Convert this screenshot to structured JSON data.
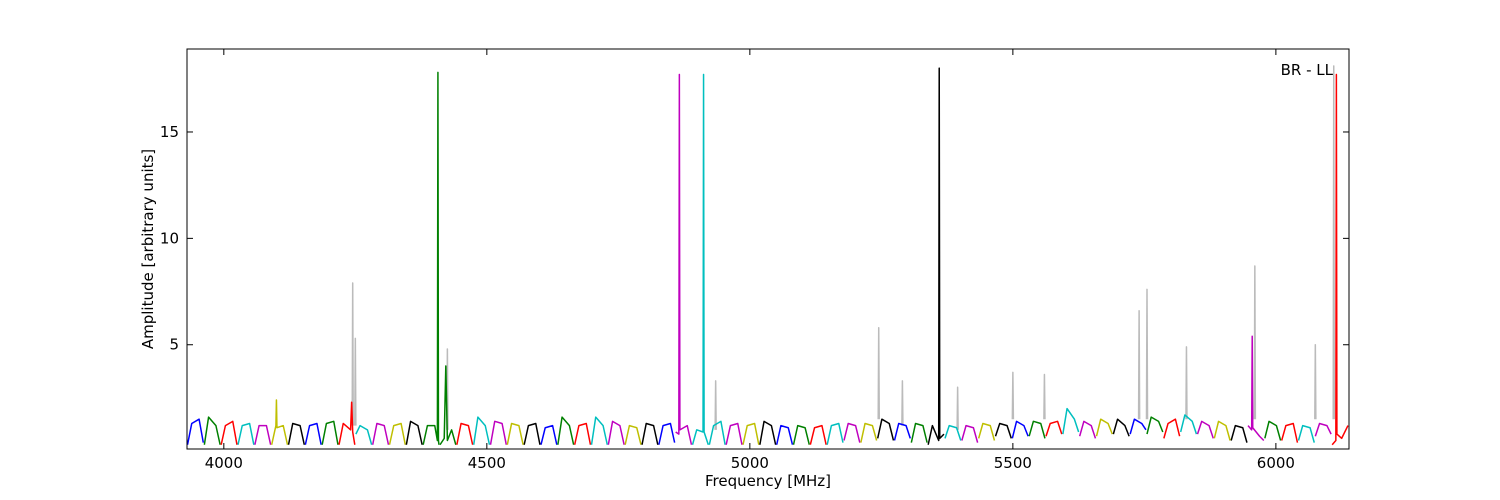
{
  "chart_data": {
    "type": "line",
    "annotation": "BR - LL",
    "x_label": "Frequency [MHz]",
    "y_label": "Amplitude [arbitrary units]",
    "xlim": [
      3930,
      6139
    ],
    "ylim": [
      0.1,
      18.9
    ],
    "xticks": [
      4000,
      4500,
      5000,
      5500,
      6000
    ],
    "yticks": [
      5,
      10,
      15
    ],
    "grid": false,
    "series": [
      {
        "color": "#bbbbbb",
        "x": [
          4244,
          4245,
          4246,
          null,
          4249,
          4250,
          4251,
          null,
          4424,
          4425,
          4426,
          null,
          4934,
          4935,
          4936,
          null,
          5244,
          5245,
          5246,
          null,
          5289,
          5290,
          5291,
          null,
          5394,
          5395,
          5396,
          null,
          5499,
          5500,
          5501,
          null,
          5559,
          5560,
          5561,
          null,
          5739,
          5740,
          5741,
          null,
          5754,
          5755,
          5756,
          null,
          5829,
          5830,
          5831,
          null,
          5959,
          5960,
          5961,
          null,
          6074,
          6075,
          6076,
          null,
          6109,
          6110,
          6111
        ],
        "values": [
          1.2,
          7.9,
          1.2,
          null,
          1.2,
          5.3,
          1.2,
          null,
          1.0,
          4.8,
          1.0,
          null,
          1.0,
          3.3,
          1.0,
          null,
          1.5,
          5.8,
          1.5,
          null,
          1.2,
          3.3,
          1.2,
          null,
          1.0,
          3.0,
          1.0,
          null,
          1.5,
          3.7,
          1.5,
          null,
          1.5,
          3.6,
          1.5,
          null,
          1.5,
          6.6,
          1.5,
          null,
          1.5,
          7.6,
          1.5,
          null,
          1.5,
          4.9,
          1.5,
          null,
          1.5,
          8.7,
          1.5,
          null,
          1.5,
          5.0,
          1.5,
          null,
          1.5,
          18.1,
          1.5
        ]
      },
      {
        "color": "#0000ff",
        "x": [
          3931,
          3939,
          3953,
          3961,
          null,
          4155,
          4163,
          4177,
          4185,
          null,
          4603,
          4611,
          4625,
          4633,
          null,
          4827,
          4835,
          4849,
          4857,
          null,
          5051,
          5059,
          5073,
          5081,
          null,
          5275,
          5283,
          5297,
          5305,
          null,
          5499,
          5507,
          5521,
          5529,
          null,
          5723,
          5731,
          5745,
          5753
        ],
        "values": [
          0.3,
          1.3,
          1.5,
          0.4,
          null,
          0.3,
          1.2,
          1.3,
          0.3,
          null,
          0.3,
          1.1,
          1.2,
          0.3,
          null,
          0.3,
          1.2,
          1.3,
          0.4,
          null,
          0.3,
          1.2,
          1.1,
          0.3,
          null,
          0.5,
          1.3,
          1.2,
          0.6,
          null,
          0.6,
          1.4,
          1.2,
          0.7,
          null,
          0.8,
          1.5,
          1.3,
          1.0
        ]
      },
      {
        "color": "#008000",
        "x": [
          3963,
          3971,
          3985,
          3993,
          null,
          4187,
          4195,
          4209,
          4217,
          null,
          4379,
          4387,
          4401,
          4406,
          4407,
          4408,
          4409,
          null,
          4411,
          4419,
          4422,
          4425,
          4433,
          4441,
          null,
          4635,
          4643,
          4657,
          4665,
          null,
          5083,
          5091,
          5105,
          5113,
          null,
          5307,
          5315,
          5329,
          5337,
          null,
          5531,
          5539,
          5553,
          5561,
          null,
          5755,
          5763,
          5777,
          5785,
          null,
          5979,
          5987,
          6001,
          6009
        ],
        "values": [
          0.3,
          1.6,
          1.2,
          0.3,
          null,
          0.3,
          1.3,
          1.4,
          0.3,
          null,
          0.3,
          1.2,
          1.2,
          0.5,
          17.8,
          0.5,
          0.3,
          null,
          0.3,
          0.6,
          4.0,
          0.5,
          1.0,
          0.3,
          null,
          0.3,
          1.6,
          1.2,
          0.3,
          null,
          0.3,
          1.2,
          1.1,
          0.3,
          null,
          0.4,
          1.3,
          1.2,
          0.4,
          null,
          0.7,
          1.4,
          1.3,
          0.6,
          null,
          0.8,
          1.6,
          1.4,
          0.9,
          null,
          0.6,
          1.4,
          1.2,
          0.5
        ]
      },
      {
        "color": "#ff0000",
        "x": [
          3995,
          4003,
          4017,
          4025,
          null,
          4219,
          4227,
          4241,
          4243,
          4245,
          4249,
          null,
          4443,
          4451,
          4465,
          4473,
          null,
          4667,
          4675,
          4689,
          4697,
          null,
          5115,
          5123,
          5137,
          5145,
          null,
          5563,
          5571,
          5585,
          5593,
          null,
          5787,
          5795,
          5809,
          5817,
          null,
          6011,
          6019,
          6033,
          6041,
          null,
          6107,
          6114,
          6115,
          6116,
          6125,
          6137
        ],
        "values": [
          0.3,
          1.2,
          1.4,
          0.3,
          null,
          0.3,
          1.3,
          1.0,
          2.3,
          0.9,
          0.3,
          null,
          0.3,
          1.3,
          1.2,
          0.3,
          null,
          0.3,
          1.2,
          1.3,
          0.3,
          null,
          0.3,
          1.1,
          1.2,
          0.3,
          null,
          0.7,
          1.3,
          1.4,
          0.8,
          null,
          0.6,
          1.3,
          1.5,
          0.7,
          null,
          0.5,
          1.2,
          1.3,
          0.4,
          null,
          0.3,
          0.5,
          17.7,
          0.8,
          0.6,
          1.2
        ]
      },
      {
        "color": "#00bfbf",
        "x": [
          4027,
          4035,
          4049,
          4057,
          null,
          4251,
          4259,
          4273,
          4281,
          null,
          4475,
          4483,
          4497,
          4505,
          null,
          4699,
          4707,
          4721,
          4729,
          null,
          4891,
          4899,
          4911,
          4912,
          4913,
          4921,
          null,
          4923,
          4931,
          4945,
          4953,
          null,
          5147,
          5155,
          5169,
          5177,
          null,
          5371,
          5379,
          5393,
          5401,
          null,
          5595,
          5603,
          5617,
          5625,
          null,
          5819,
          5827,
          5841,
          5849,
          null,
          6043,
          6051,
          6065,
          6073
        ],
        "values": [
          0.3,
          1.2,
          1.3,
          0.3,
          null,
          0.8,
          1.2,
          1.0,
          0.3,
          null,
          0.3,
          1.6,
          1.2,
          0.3,
          null,
          0.3,
          1.6,
          1.2,
          0.3,
          null,
          0.3,
          1.0,
          0.9,
          17.7,
          0.9,
          0.3,
          null,
          0.3,
          1.2,
          1.4,
          0.3,
          null,
          0.3,
          1.2,
          1.3,
          0.4,
          null,
          0.6,
          1.2,
          1.1,
          0.5,
          null,
          0.8,
          2.0,
          1.5,
          0.9,
          null,
          0.9,
          1.7,
          1.4,
          0.8,
          null,
          0.5,
          1.2,
          1.1,
          0.4
        ]
      },
      {
        "color": "#bf00bf",
        "x": [
          4059,
          4067,
          4081,
          4089,
          null,
          4283,
          4291,
          4305,
          4313,
          null,
          4507,
          4515,
          4529,
          4537,
          null,
          4731,
          4739,
          4753,
          4761,
          null,
          4859,
          4865,
          4866,
          4867,
          4881,
          4889,
          null,
          4955,
          4963,
          4977,
          4985,
          null,
          5179,
          5187,
          5201,
          5209,
          null,
          5403,
          5411,
          5425,
          5433,
          null,
          5627,
          5635,
          5649,
          5657,
          null,
          5851,
          5859,
          5873,
          5881,
          null,
          5947,
          5954,
          5955,
          5956,
          5969,
          5977,
          null,
          6075,
          6083,
          6097,
          6105
        ],
        "values": [
          0.3,
          1.2,
          1.2,
          0.3,
          null,
          0.3,
          1.3,
          1.2,
          0.3,
          null,
          0.3,
          1.4,
          1.3,
          0.3,
          null,
          0.3,
          1.4,
          1.2,
          0.3,
          null,
          0.9,
          0.8,
          17.7,
          1.0,
          1.2,
          0.3,
          null,
          0.3,
          1.2,
          1.3,
          0.3,
          null,
          0.5,
          1.3,
          1.2,
          0.4,
          null,
          0.5,
          1.2,
          1.1,
          0.4,
          null,
          0.7,
          1.4,
          1.2,
          0.6,
          null,
          0.8,
          1.4,
          1.2,
          0.6,
          null,
          1.2,
          1.0,
          5.4,
          1.1,
          0.7,
          0.5,
          null,
          0.7,
          1.3,
          1.2,
          0.8
        ]
      },
      {
        "color": "#bfbf00",
        "x": [
          4091,
          4099,
          4100,
          4101,
          4113,
          4121,
          null,
          4315,
          4323,
          4337,
          4345,
          null,
          4539,
          4547,
          4561,
          4569,
          null,
          4763,
          4771,
          4785,
          4793,
          null,
          4987,
          4995,
          5009,
          5017,
          null,
          5211,
          5219,
          5233,
          5241,
          null,
          5435,
          5443,
          5457,
          5465,
          null,
          5659,
          5667,
          5681,
          5689,
          null,
          5883,
          5891,
          5905,
          5913
        ],
        "values": [
          0.3,
          1.2,
          2.4,
          1.1,
          1.2,
          0.3,
          null,
          0.3,
          1.2,
          1.3,
          0.3,
          null,
          0.3,
          1.3,
          1.2,
          0.3,
          null,
          0.3,
          1.2,
          1.1,
          0.3,
          null,
          0.3,
          1.2,
          1.3,
          0.3,
          null,
          0.4,
          1.3,
          1.2,
          0.5,
          null,
          0.6,
          1.3,
          1.2,
          0.5,
          null,
          0.7,
          1.5,
          1.3,
          0.8,
          null,
          0.6,
          1.4,
          1.2,
          0.5
        ]
      },
      {
        "color": "#000000",
        "x": [
          4123,
          4131,
          4145,
          4153,
          null,
          4347,
          4355,
          4369,
          4377,
          null,
          4571,
          4579,
          4593,
          4601,
          null,
          4795,
          4803,
          4817,
          4825,
          null,
          5019,
          5027,
          5041,
          5049,
          null,
          5243,
          5251,
          5265,
          5273,
          null,
          5339,
          5347,
          5359,
          5360,
          5361,
          5369,
          null,
          5467,
          5475,
          5489,
          5497,
          null,
          5691,
          5699,
          5713,
          5721,
          null,
          5915,
          5923,
          5937,
          5945
        ],
        "values": [
          0.3,
          1.3,
          1.2,
          0.3,
          null,
          0.3,
          1.4,
          1.2,
          0.3,
          null,
          0.3,
          1.2,
          1.3,
          0.3,
          null,
          0.3,
          1.3,
          1.2,
          0.3,
          null,
          0.3,
          1.4,
          1.2,
          0.3,
          null,
          0.6,
          1.5,
          1.3,
          0.5,
          null,
          0.3,
          1.2,
          0.5,
          18.0,
          0.6,
          0.8,
          null,
          0.7,
          1.3,
          1.2,
          0.6,
          null,
          0.8,
          1.5,
          1.2,
          0.7,
          null,
          0.5,
          1.2,
          1.1,
          0.4
        ]
      }
    ]
  }
}
